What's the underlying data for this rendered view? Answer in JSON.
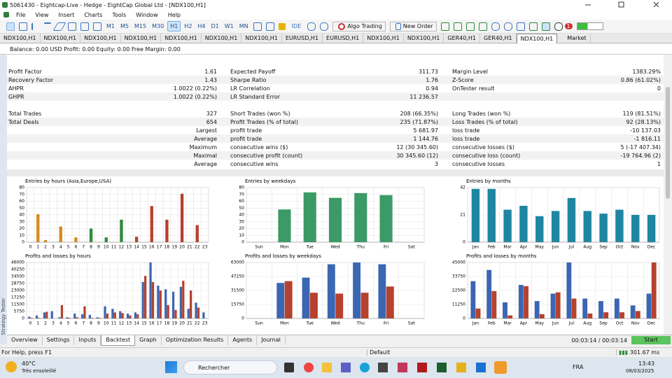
{
  "title_bar": {
    "title": "5061430 - Eightcap-Live - Hedge - EightCap Global Ltd - [NDX100,H1]"
  },
  "menu": [
    "File",
    "View",
    "Insert",
    "Charts",
    "Tools",
    "Window",
    "Help"
  ],
  "toolbar": {
    "timeframes": [
      "M1",
      "M5",
      "M15",
      "M30",
      "H1",
      "H2",
      "H4",
      "D1",
      "W1",
      "MN"
    ],
    "active_timeframe": "H1",
    "ide": "IDE",
    "algo_trading": "Algo Trading",
    "new_order": "New Order",
    "notifications": "1"
  },
  "chart_tabs": {
    "tabs": [
      "NDX100,H1",
      "NDX100,H1",
      "NDX100,H1",
      "NDX100,H1",
      "NDX100,H1",
      "NDX100,H1",
      "NDX100,H1",
      "EURUSD,H1",
      "EURUSD,H1",
      "NDX100,H1",
      "NDX100,H1",
      "GER40,H1",
      "GER40,H1",
      "NDX100,H1"
    ],
    "active": 13,
    "market": "Market"
  },
  "account_bar": "Balance: 0.00 USD  Profit: 0.00  Equity: 0.00  Free Margin: 0.00",
  "stats": {
    "rows": [
      {
        "c1": "Profit Factor",
        "v1": "1.61",
        "c2": "Expected Payoff",
        "v2": "311.73",
        "c3": "Margin Level",
        "v3": "1383.29%"
      },
      {
        "c1": "Recovery Factor",
        "v1": "1.43",
        "c2": "Sharpe Ratio",
        "v2": "1.76",
        "c3": "Z-Score",
        "v3": "0.86 (61.02%)"
      },
      {
        "c1": "AHPR",
        "v1": "1.0022 (0.22%)",
        "c2": "LR Correlation",
        "v2": "0.94",
        "c3": "OnTester result",
        "v3": "0"
      },
      {
        "c1": "GHPR",
        "v1": "1.0022 (0.22%)",
        "c2": "LR Standard Error",
        "v2": "11 236.57"
      },
      {
        "c1": "Total Trades",
        "v1": "327",
        "c2": "Short Trades (won %)",
        "v2": "208 (66.35%)",
        "c3": "Long Trades (won %)",
        "v3": "119 (81.51%)"
      },
      {
        "c1": "Total Deals",
        "v1": "654",
        "c2": "Profit Trades (% of total)",
        "v2": "235 (71.87%)",
        "c3": "Loss Trades (% of total)",
        "v3": "92 (28.13%)"
      },
      {
        "v1": "Largest",
        "c2": "profit trade",
        "v2": "5 681.97",
        "c3": "loss trade",
        "v3": "-10 137.03"
      },
      {
        "v1": "Average",
        "c2": "profit trade",
        "v2": "1 144.76",
        "c3": "loss trade",
        "v3": "-1 816.11"
      },
      {
        "v1": "Maximum",
        "c2": "consecutive wins ($)",
        "v2": "12 (30 345.60)",
        "c3": "consecutive losses ($)",
        "v3": "5 (-17 407.34)"
      },
      {
        "v1": "Maximal",
        "c2": "consecutive profit (count)",
        "v2": "30 345.60 (12)",
        "c3": "consecutive loss (count)",
        "v3": "-19 764.96 (2)"
      },
      {
        "v1": "Average",
        "c2": "consecutive wins",
        "v2": "3",
        "c3": "consecutive losses",
        "v3": "1"
      }
    ]
  },
  "chart_data": [
    {
      "type": "bar",
      "title": "Entries by hours (Asia,Europe,USA)",
      "categories": [
        0,
        1,
        2,
        3,
        4,
        5,
        6,
        7,
        8,
        9,
        10,
        11,
        12,
        13,
        14,
        15,
        16,
        17,
        18,
        19,
        20,
        21,
        22,
        23
      ],
      "values": [
        0,
        41,
        3,
        0,
        23,
        0,
        7,
        0,
        20,
        0,
        7,
        0,
        33,
        0,
        8,
        0,
        53,
        0,
        33,
        0,
        71,
        0,
        25,
        0
      ],
      "colors": [
        "#d68a1c",
        "#d68a1c",
        "#d68a1c",
        "#d68a1c",
        "#d68a1c",
        "#d68a1c",
        "#d68a1c",
        "#d68a1c",
        "#2e8b3a",
        "#2e8b3a",
        "#2e8b3a",
        "#2e8b3a",
        "#2e8b3a",
        "#2e8b3a",
        "#b7412e",
        "#b7412e",
        "#b7412e",
        "#b7412e",
        "#b7412e",
        "#b7412e",
        "#b7412e",
        "#b7412e",
        "#b7412e",
        "#b7412e"
      ],
      "ylim": [
        0,
        80
      ],
      "yticks": [
        0,
        10,
        20,
        30,
        40,
        50,
        60,
        70,
        80
      ],
      "grid": true
    },
    {
      "type": "bar",
      "title": "Entries by weekdays",
      "categories": [
        "Sun",
        "Mon",
        "Tue",
        "Wed",
        "Thu",
        "Fri",
        "Sat"
      ],
      "values": [
        0,
        48,
        73,
        65,
        72,
        69,
        0
      ],
      "color": "#3c9a66",
      "ylim": [
        0,
        80
      ],
      "yticks": [
        0,
        10,
        20,
        30,
        40,
        50,
        60,
        70,
        80
      ],
      "grid": true
    },
    {
      "type": "bar",
      "title": "Entries by months",
      "categories": [
        "Jan",
        "Feb",
        "Mar",
        "Apr",
        "May",
        "Jun",
        "Jul",
        "Aug",
        "Sep",
        "Oct",
        "Nov",
        "Dec"
      ],
      "values": [
        41,
        41,
        25,
        28,
        20,
        24,
        34,
        24,
        22,
        25,
        21,
        21
      ],
      "color": "#1f86a2",
      "ylim": [
        0,
        42
      ],
      "yticks": [
        0,
        21,
        42
      ],
      "grid": true
    },
    {
      "type": "bar",
      "title": "Profits and losses by hours",
      "categories": [
        0,
        1,
        2,
        3,
        4,
        5,
        6,
        7,
        8,
        9,
        10,
        11,
        12,
        13,
        14,
        15,
        16,
        17,
        18,
        19,
        20,
        21,
        22,
        23
      ],
      "series": [
        {
          "color": "#3b66b2",
          "values": [
            1500,
            2500,
            5000,
            6000,
            1000,
            1000,
            4000,
            3500,
            3000,
            1000,
            10000,
            8000,
            6000,
            4000,
            5000,
            30000,
            46000,
            27000,
            24000,
            22000,
            26000,
            8000,
            13000,
            5000
          ]
        },
        {
          "color": "#b5412e",
          "values": [
            500,
            500,
            5500,
            0,
            11000,
            500,
            1000,
            10000,
            500,
            500,
            4000,
            5000,
            4500,
            2500,
            3500,
            35000,
            30000,
            23000,
            11000,
            7000,
            31000,
            23000,
            9000,
            0
          ]
        }
      ],
      "ylim": [
        0,
        46000
      ],
      "yticks": [
        0,
        5750,
        11500,
        17250,
        23000,
        28750,
        34500,
        40250,
        46000
      ],
      "grid": true
    },
    {
      "type": "bar",
      "title": "Profits and losses by weekdays",
      "categories": [
        "Sun",
        "Mon",
        "Tue",
        "Wed",
        "Thu",
        "Fri",
        "Sat"
      ],
      "series": [
        {
          "color": "#3b66b2",
          "values": [
            0,
            40000,
            46000,
            61000,
            63000,
            61000,
            0
          ]
        },
        {
          "color": "#b5412e",
          "values": [
            0,
            42000,
            29000,
            28000,
            29000,
            36000,
            0
          ]
        }
      ],
      "ylim": [
        0,
        63000
      ],
      "yticks": [
        0,
        15750,
        31500,
        47250,
        63000
      ],
      "grid": true
    },
    {
      "type": "bar",
      "title": "Profits and losses by months",
      "categories": [
        "Jan",
        "Feb",
        "Mar",
        "Apr",
        "May",
        "Jun",
        "Jul",
        "Aug",
        "Sep",
        "Oct",
        "Nov",
        "Dec"
      ],
      "series": [
        {
          "color": "#3b66b2",
          "values": [
            30000,
            39000,
            13000,
            27000,
            14000,
            20000,
            45000,
            16000,
            14000,
            16000,
            10500,
            20000
          ]
        },
        {
          "color": "#b5412e",
          "values": [
            8000,
            22000,
            2500,
            26000,
            3500,
            21000,
            16000,
            4000,
            5000,
            5000,
            6000,
            45000
          ]
        }
      ],
      "ylim": [
        0,
        45000
      ],
      "yticks": [
        0,
        11250,
        22500,
        33750,
        45000
      ],
      "grid": true
    }
  ],
  "tester": {
    "side_label": "Strategy Tester",
    "tabs": [
      "Overview",
      "Settings",
      "Inputs",
      "Backtest",
      "Graph",
      "Optimization Results",
      "Agents",
      "Journal"
    ],
    "active_tab": "Backtest",
    "elapsed": "00:03:14 / 00:03:14",
    "start": "Start"
  },
  "status_bar": {
    "help": "For Help, press F1",
    "profile": "Default",
    "ping": "301.67 ms"
  },
  "taskbar": {
    "temperature": "40°C",
    "weather": "Très ensoleillé",
    "search": "Rechercher",
    "language": "FRA",
    "time": "13:43",
    "date": "08/03/2025"
  }
}
